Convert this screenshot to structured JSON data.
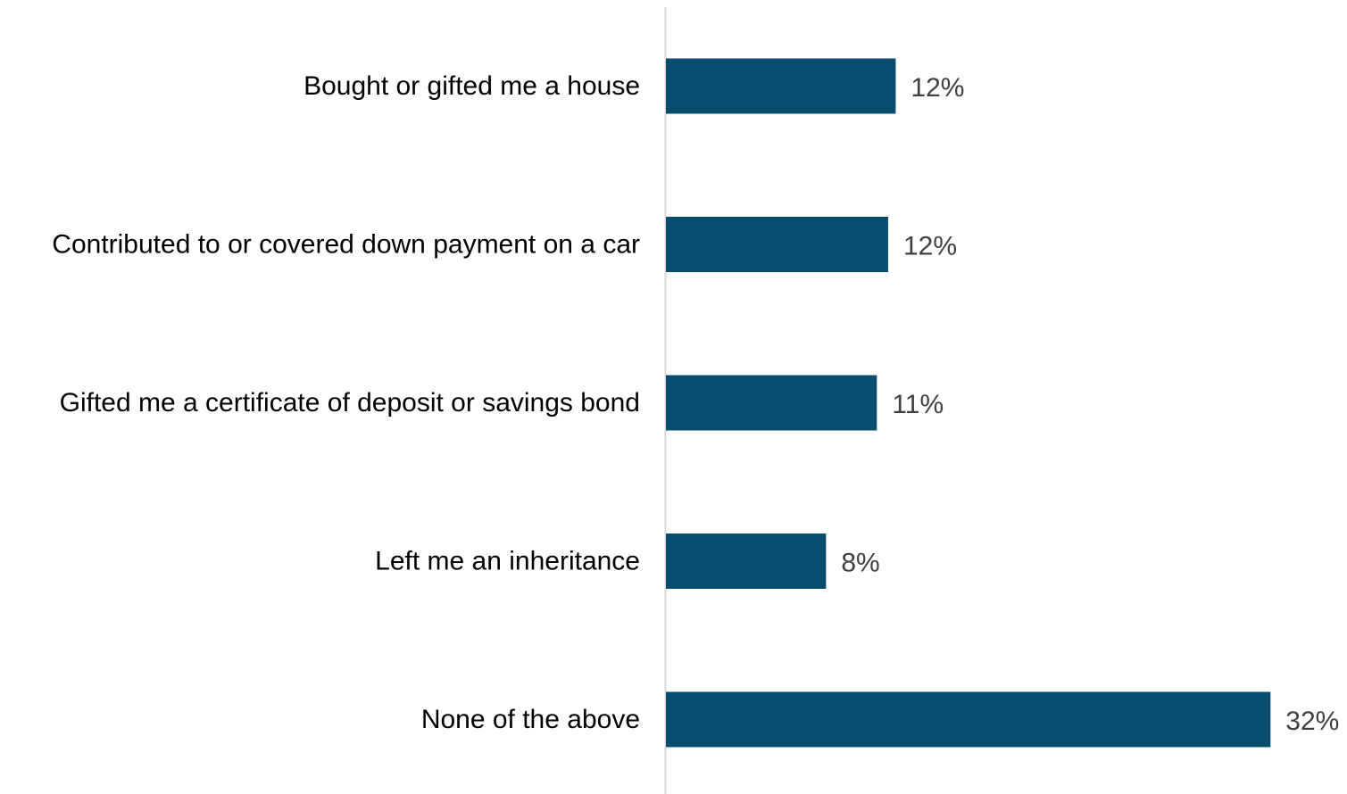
{
  "chart_data": {
    "type": "bar",
    "orientation": "horizontal",
    "categories": [
      "Bought or gifted me a house",
      "Contributed to or covered down payment on a car",
      "Gifted me a certificate of deposit or savings bond",
      "Left me an inheritance",
      "None of the above"
    ],
    "values": [
      12.2,
      11.8,
      11.2,
      8.5,
      32.1
    ],
    "value_labels": [
      "12%",
      "12%",
      "11%",
      "8%",
      "32%"
    ],
    "unit": "%",
    "title": "",
    "xlabel": "",
    "ylabel": "",
    "grid": false,
    "legend": "none",
    "colors": {
      "bar": "#084C6E",
      "axis": "#D9D9D9",
      "category_text": "#000000",
      "value_text": "#404040"
    }
  }
}
